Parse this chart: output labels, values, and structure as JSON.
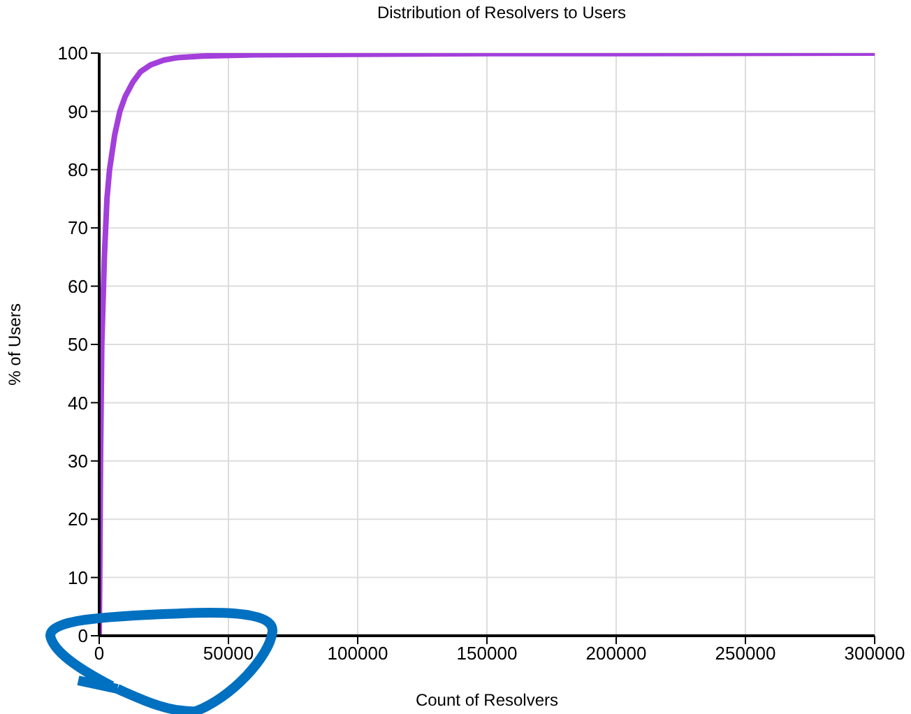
{
  "chart_data": {
    "type": "line",
    "title": "Distribution of Resolvers to Users",
    "xlabel": "Count of Resolvers",
    "ylabel": "% of Users",
    "series": [
      {
        "color": "#a33fdb",
        "x": [
          0,
          200,
          500,
          1000,
          2000,
          3000,
          4000,
          6000,
          8000,
          10000,
          13000,
          16000,
          20000,
          25000,
          30000,
          40000,
          60000,
          100000,
          150000,
          200000,
          300000
        ],
        "values": [
          0,
          10,
          30,
          50,
          65,
          75,
          80,
          86,
          90,
          92.5,
          95,
          96.8,
          98,
          98.8,
          99.2,
          99.5,
          99.7,
          99.8,
          99.9,
          99.9,
          100
        ]
      }
    ],
    "xlim": [
      0,
      300000
    ],
    "xticks": [
      0,
      50000,
      100000,
      150000,
      200000,
      250000,
      300000
    ],
    "ylim": [
      0,
      100
    ],
    "yticks": [
      0,
      10,
      20,
      30,
      40,
      50,
      60,
      70,
      80,
      90,
      100
    ],
    "grid": true,
    "marker": "none",
    "line_style": "solid"
  }
}
